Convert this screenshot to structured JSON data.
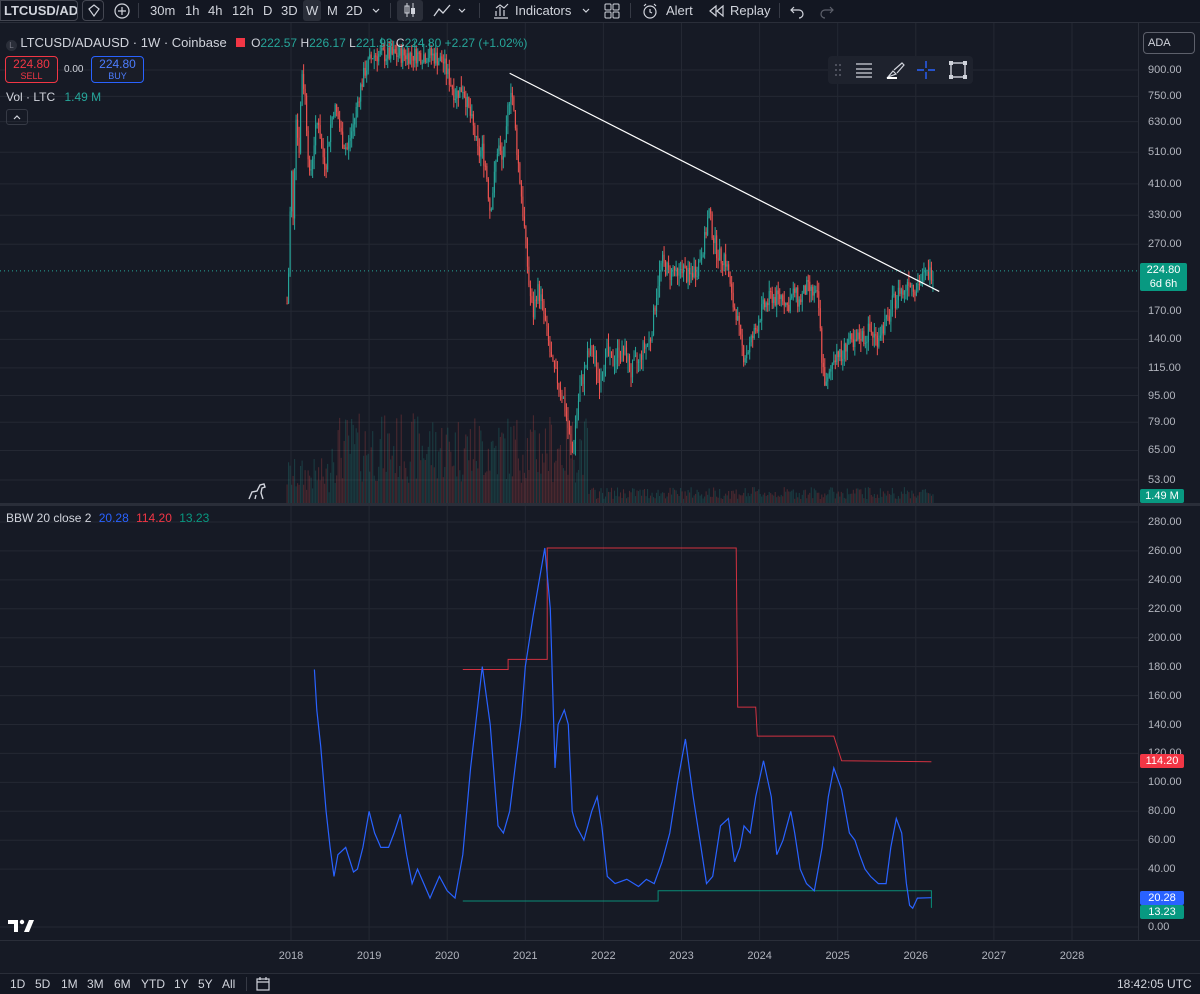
{
  "toolbar": {
    "symbol": "LTCUSD/ADA",
    "timeframes": [
      "30m",
      "1h",
      "4h",
      "12h",
      "D",
      "3D",
      "W",
      "M",
      "2D"
    ],
    "active_timeframe": "W",
    "indicators_label": "Indicators",
    "alert_label": "Alert",
    "replay_label": "Replay"
  },
  "legend": {
    "title": "LTCUSD/ADAUSD · 1W · Coinbase",
    "o_label": "O",
    "o": "222.57",
    "h_label": "H",
    "h": "226.17",
    "l_label": "L",
    "l": "221.93",
    "c_label": "C",
    "c": "224.80",
    "change": "+2.27 (+1.02%)",
    "sell_price": "224.80",
    "sell_label": "SELL",
    "spread": "0.00",
    "buy_price": "224.80",
    "buy_label": "BUY",
    "vol_label": "Vol · LTC",
    "vol_value": "1.49 M",
    "bbw_label": "BBW 20 close 2",
    "bbw_v1": "20.28",
    "bbw_v2": "114.20",
    "bbw_v3": "13.23"
  },
  "currency_label": "ADA",
  "price_axis_ticks": [
    "900.00",
    "750.00",
    "630.00",
    "510.00",
    "410.00",
    "330.00",
    "270.00",
    "170.00",
    "140.00",
    "115.00",
    "95.00",
    "79.00",
    "65.00",
    "53.00"
  ],
  "current_price_tag": "224.80",
  "countdown_tag": "6d 6h",
  "volume_tag": "1.49 M",
  "bbw_axis_ticks": [
    "280.00",
    "260.00",
    "240.00",
    "220.00",
    "200.00",
    "180.00",
    "160.00",
    "140.00",
    "120.00",
    "100.00",
    "80.00",
    "60.00",
    "40.00",
    "0.00"
  ],
  "bbw_tags": [
    "114.20",
    "20.28",
    "13.23"
  ],
  "time_axis_ticks": [
    "2018",
    "2019",
    "2020",
    "2021",
    "2022",
    "2023",
    "2024",
    "2025",
    "2026",
    "2027",
    "2028"
  ],
  "bottombar": {
    "ranges": [
      "1D",
      "5D",
      "1M",
      "3M",
      "6M",
      "YTD",
      "1Y",
      "5Y",
      "All"
    ],
    "clock": "18:42:05 UTC"
  },
  "colors": {
    "background": "#161a25",
    "up": "#26a69a",
    "down": "#ef5350",
    "bbw_line": "#2962ff",
    "bbw_high": "#f23645",
    "bbw_low": "#089981",
    "trendline": "#ffffff",
    "buy": "#2962ff",
    "sell": "#f23645"
  },
  "chart_data": [
    {
      "type": "candlestick",
      "title": "LTCUSD/ADAUSD · 1W · Coinbase",
      "scale": "log",
      "ylim": [
        50,
        1000
      ],
      "x_range": [
        2017.9,
        2028.0
      ],
      "price_path": [
        [
          2017.95,
          180
        ],
        [
          2017.98,
          250
        ],
        [
          2018.0,
          500
        ],
        [
          2018.03,
          300
        ],
        [
          2018.06,
          700
        ],
        [
          2018.1,
          500
        ],
        [
          2018.14,
          900
        ],
        [
          2018.18,
          750
        ],
        [
          2018.24,
          420
        ],
        [
          2018.3,
          560
        ],
        [
          2018.35,
          650
        ],
        [
          2018.4,
          500
        ],
        [
          2018.45,
          480
        ],
        [
          2018.5,
          600
        ],
        [
          2018.55,
          700
        ],
        [
          2018.6,
          650
        ],
        [
          2018.65,
          560
        ],
        [
          2018.72,
          520
        ],
        [
          2018.8,
          620
        ],
        [
          2018.88,
          780
        ],
        [
          2018.95,
          900
        ],
        [
          2019.05,
          1000
        ],
        [
          2019.15,
          1000
        ],
        [
          2019.25,
          1000
        ],
        [
          2019.4,
          1000
        ],
        [
          2019.6,
          1000
        ],
        [
          2019.8,
          1000
        ],
        [
          2019.95,
          950
        ],
        [
          2020.0,
          880
        ],
        [
          2020.1,
          760
        ],
        [
          2020.2,
          800
        ],
        [
          2020.3,
          650
        ],
        [
          2020.35,
          580
        ],
        [
          2020.4,
          500
        ],
        [
          2020.45,
          520
        ],
        [
          2020.5,
          450
        ],
        [
          2020.55,
          340
        ],
        [
          2020.6,
          420
        ],
        [
          2020.65,
          540
        ],
        [
          2020.7,
          480
        ],
        [
          2020.75,
          540
        ],
        [
          2020.78,
          700
        ],
        [
          2020.82,
          820
        ],
        [
          2020.85,
          680
        ],
        [
          2020.9,
          500
        ],
        [
          2020.95,
          380
        ],
        [
          2021.0,
          280
        ],
        [
          2021.05,
          200
        ],
        [
          2021.1,
          165
        ],
        [
          2021.15,
          200
        ],
        [
          2021.2,
          185
        ],
        [
          2021.25,
          160
        ],
        [
          2021.3,
          135
        ],
        [
          2021.35,
          115
        ],
        [
          2021.4,
          108
        ],
        [
          2021.45,
          100
        ],
        [
          2021.5,
          90
        ],
        [
          2021.55,
          75
        ],
        [
          2021.6,
          63
        ],
        [
          2021.65,
          80
        ],
        [
          2021.7,
          100
        ],
        [
          2021.75,
          110
        ],
        [
          2021.8,
          125
        ],
        [
          2021.85,
          130
        ],
        [
          2021.9,
          118
        ],
        [
          2021.95,
          105
        ],
        [
          2022.0,
          120
        ],
        [
          2022.05,
          130
        ],
        [
          2022.1,
          118
        ],
        [
          2022.2,
          130
        ],
        [
          2022.3,
          125
        ],
        [
          2022.35,
          110
        ],
        [
          2022.4,
          120
        ],
        [
          2022.45,
          118
        ],
        [
          2022.5,
          130
        ],
        [
          2022.6,
          140
        ],
        [
          2022.65,
          170
        ],
        [
          2022.7,
          210
        ],
        [
          2022.75,
          240
        ],
        [
          2022.8,
          230
        ],
        [
          2022.85,
          220
        ],
        [
          2022.9,
          230
        ],
        [
          2022.95,
          210
        ],
        [
          2023.0,
          235
        ],
        [
          2023.05,
          220
        ],
        [
          2023.1,
          215
        ],
        [
          2023.15,
          225
        ],
        [
          2023.2,
          230
        ],
        [
          2023.3,
          280
        ],
        [
          2023.35,
          340
        ],
        [
          2023.4,
          290
        ],
        [
          2023.45,
          260
        ],
        [
          2023.5,
          245
        ],
        [
          2023.55,
          250
        ],
        [
          2023.6,
          220
        ],
        [
          2023.65,
          180
        ],
        [
          2023.7,
          170
        ],
        [
          2023.75,
          140
        ],
        [
          2023.8,
          125
        ],
        [
          2023.85,
          130
        ],
        [
          2023.9,
          140
        ],
        [
          2023.95,
          150
        ],
        [
          2024.0,
          165
        ],
        [
          2024.05,
          175
        ],
        [
          2024.1,
          180
        ],
        [
          2024.15,
          190
        ],
        [
          2024.2,
          185
        ],
        [
          2024.3,
          190
        ],
        [
          2024.35,
          175
        ],
        [
          2024.4,
          185
        ],
        [
          2024.45,
          195
        ],
        [
          2024.5,
          180
        ],
        [
          2024.55,
          190
        ],
        [
          2024.6,
          200
        ],
        [
          2024.7,
          190
        ],
        [
          2024.75,
          185
        ],
        [
          2024.8,
          120
        ],
        [
          2024.85,
          100
        ],
        [
          2024.9,
          110
        ],
        [
          2024.95,
          125
        ],
        [
          2025.0,
          130
        ],
        [
          2025.05,
          120
        ],
        [
          2025.1,
          135
        ],
        [
          2025.15,
          140
        ],
        [
          2025.2,
          130
        ],
        [
          2025.25,
          140
        ],
        [
          2025.3,
          145
        ],
        [
          2025.35,
          140
        ],
        [
          2025.4,
          150
        ],
        [
          2025.45,
          145
        ],
        [
          2025.5,
          140
        ],
        [
          2025.55,
          150
        ],
        [
          2025.6,
          155
        ],
        [
          2025.65,
          160
        ],
        [
          2025.7,
          180
        ],
        [
          2025.75,
          185
        ],
        [
          2025.8,
          200
        ],
        [
          2025.85,
          190
        ],
        [
          2025.9,
          215
        ],
        [
          2025.95,
          205
        ],
        [
          2026.0,
          200
        ],
        [
          2026.05,
          210
        ],
        [
          2026.1,
          215
        ],
        [
          2026.15,
          220
        ],
        [
          2026.22,
          224.8
        ]
      ],
      "last": {
        "open": 222.57,
        "high": 226.17,
        "low": 221.93,
        "close": 224.8,
        "change": 2.27,
        "change_pct": 1.02
      },
      "trendline": [
        [
          2020.8,
          880
        ],
        [
          2026.3,
          195
        ]
      ],
      "volume": {
        "last": "1.49 M"
      }
    },
    {
      "type": "line",
      "title": "BBW 20 close 2",
      "ylim": [
        0,
        290
      ],
      "x_range": [
        2017.9,
        2028.0
      ],
      "series": [
        {
          "name": "BBW",
          "values": [
            [
              2018.3,
              178
            ],
            [
              2018.33,
              150
            ],
            [
              2018.38,
              125
            ],
            [
              2018.45,
              80
            ],
            [
              2018.5,
              55
            ],
            [
              2018.55,
              35
            ],
            [
              2018.6,
              50
            ],
            [
              2018.7,
              55
            ],
            [
              2018.8,
              38
            ],
            [
              2018.85,
              40
            ],
            [
              2018.92,
              55
            ],
            [
              2019.0,
              80
            ],
            [
              2019.07,
              65
            ],
            [
              2019.15,
              55
            ],
            [
              2019.25,
              55
            ],
            [
              2019.32,
              65
            ],
            [
              2019.4,
              78
            ],
            [
              2019.48,
              50
            ],
            [
              2019.55,
              30
            ],
            [
              2019.62,
              40
            ],
            [
              2019.7,
              30
            ],
            [
              2019.78,
              20
            ],
            [
              2019.82,
              25
            ],
            [
              2019.9,
              35
            ],
            [
              2020.0,
              25
            ],
            [
              2020.1,
              20
            ],
            [
              2020.2,
              50
            ],
            [
              2020.3,
              110
            ],
            [
              2020.45,
              180
            ],
            [
              2020.55,
              140
            ],
            [
              2020.65,
              70
            ],
            [
              2020.72,
              65
            ],
            [
              2020.8,
              80
            ],
            [
              2020.88,
              115
            ],
            [
              2020.95,
              145
            ],
            [
              2021.0,
              180
            ],
            [
              2021.1,
              215
            ],
            [
              2021.25,
              262
            ],
            [
              2021.32,
              220
            ],
            [
              2021.38,
              110
            ],
            [
              2021.42,
              140
            ],
            [
              2021.5,
              150
            ],
            [
              2021.55,
              140
            ],
            [
              2021.6,
              80
            ],
            [
              2021.65,
              70
            ],
            [
              2021.75,
              60
            ],
            [
              2021.85,
              80
            ],
            [
              2021.92,
              90
            ],
            [
              2021.98,
              70
            ],
            [
              2022.05,
              35
            ],
            [
              2022.15,
              30
            ],
            [
              2022.3,
              33
            ],
            [
              2022.45,
              28
            ],
            [
              2022.55,
              33
            ],
            [
              2022.65,
              30
            ],
            [
              2022.75,
              45
            ],
            [
              2022.85,
              65
            ],
            [
              2022.95,
              100
            ],
            [
              2023.05,
              130
            ],
            [
              2023.15,
              90
            ],
            [
              2023.25,
              55
            ],
            [
              2023.32,
              30
            ],
            [
              2023.4,
              35
            ],
            [
              2023.5,
              70
            ],
            [
              2023.6,
              75
            ],
            [
              2023.68,
              45
            ],
            [
              2023.75,
              55
            ],
            [
              2023.8,
              70
            ],
            [
              2023.88,
              65
            ],
            [
              2023.95,
              90
            ],
            [
              2024.05,
              115
            ],
            [
              2024.15,
              90
            ],
            [
              2024.22,
              50
            ],
            [
              2024.3,
              60
            ],
            [
              2024.4,
              80
            ],
            [
              2024.45,
              65
            ],
            [
              2024.52,
              40
            ],
            [
              2024.6,
              30
            ],
            [
              2024.7,
              25
            ],
            [
              2024.8,
              55
            ],
            [
              2024.88,
              90
            ],
            [
              2024.95,
              110
            ],
            [
              2025.05,
              95
            ],
            [
              2025.15,
              65
            ],
            [
              2025.22,
              60
            ],
            [
              2025.28,
              50
            ],
            [
              2025.35,
              40
            ],
            [
              2025.42,
              35
            ],
            [
              2025.52,
              30
            ],
            [
              2025.62,
              30
            ],
            [
              2025.68,
              55
            ],
            [
              2025.75,
              75
            ],
            [
              2025.82,
              65
            ],
            [
              2025.88,
              30
            ],
            [
              2025.92,
              15
            ],
            [
              2025.96,
              13
            ],
            [
              2026.02,
              20
            ],
            [
              2026.2,
              20.28
            ]
          ]
        },
        {
          "name": "High",
          "values": [
            [
              2020.2,
              178
            ],
            [
              2020.78,
              178
            ],
            [
              2020.78,
              185
            ],
            [
              2021.28,
              185
            ],
            [
              2021.28,
              262
            ],
            [
              2023.7,
              262
            ],
            [
              2023.72,
              152
            ],
            [
              2023.95,
              152
            ],
            [
              2023.97,
              132
            ],
            [
              2024.95,
              132
            ],
            [
              2025.05,
              115
            ],
            [
              2026.2,
              114.2
            ]
          ]
        },
        {
          "name": "Low",
          "values": [
            [
              2020.2,
              18
            ],
            [
              2022.7,
              18
            ],
            [
              2022.7,
              25
            ],
            [
              2026.2,
              25
            ],
            [
              2026.2,
              13.23
            ]
          ]
        }
      ]
    }
  ]
}
